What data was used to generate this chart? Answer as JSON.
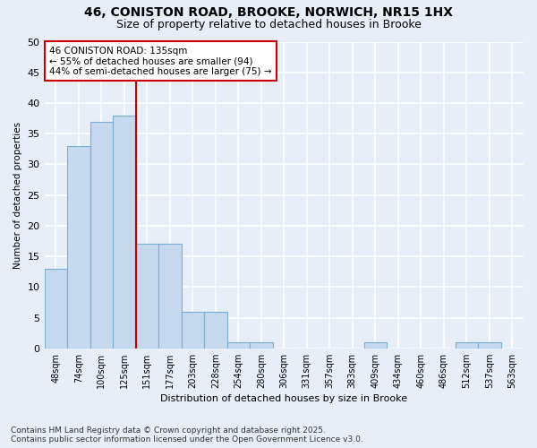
{
  "title_line1": "46, CONISTON ROAD, BROOKE, NORWICH, NR15 1HX",
  "title_line2": "Size of property relative to detached houses in Brooke",
  "xlabel": "Distribution of detached houses by size in Brooke",
  "ylabel": "Number of detached properties",
  "bins": [
    "48sqm",
    "74sqm",
    "100sqm",
    "125sqm",
    "151sqm",
    "177sqm",
    "203sqm",
    "228sqm",
    "254sqm",
    "280sqm",
    "306sqm",
    "331sqm",
    "357sqm",
    "383sqm",
    "409sqm",
    "434sqm",
    "460sqm",
    "486sqm",
    "512sqm",
    "537sqm",
    "563sqm"
  ],
  "values": [
    13,
    33,
    37,
    38,
    17,
    17,
    6,
    6,
    1,
    1,
    0,
    0,
    0,
    0,
    1,
    0,
    0,
    0,
    1,
    1,
    0
  ],
  "bar_color": "#c5d8ed",
  "bar_edge_color": "#7bafd4",
  "background_color": "#e8eef8",
  "grid_color": "#ffffff",
  "marker_bin_after": 3,
  "marker_color": "#cc0000",
  "annotation_title": "46 CONISTON ROAD: 135sqm",
  "annotation_line2": "← 55% of detached houses are smaller (94)",
  "annotation_line3": "44% of semi-detached houses are larger (75) →",
  "annotation_box_color": "#ffffff",
  "annotation_box_edge": "#cc0000",
  "footer_line1": "Contains HM Land Registry data © Crown copyright and database right 2025.",
  "footer_line2": "Contains public sector information licensed under the Open Government Licence v3.0.",
  "ylim": [
    0,
    50
  ],
  "yticks": [
    0,
    5,
    10,
    15,
    20,
    25,
    30,
    35,
    40,
    45,
    50
  ]
}
